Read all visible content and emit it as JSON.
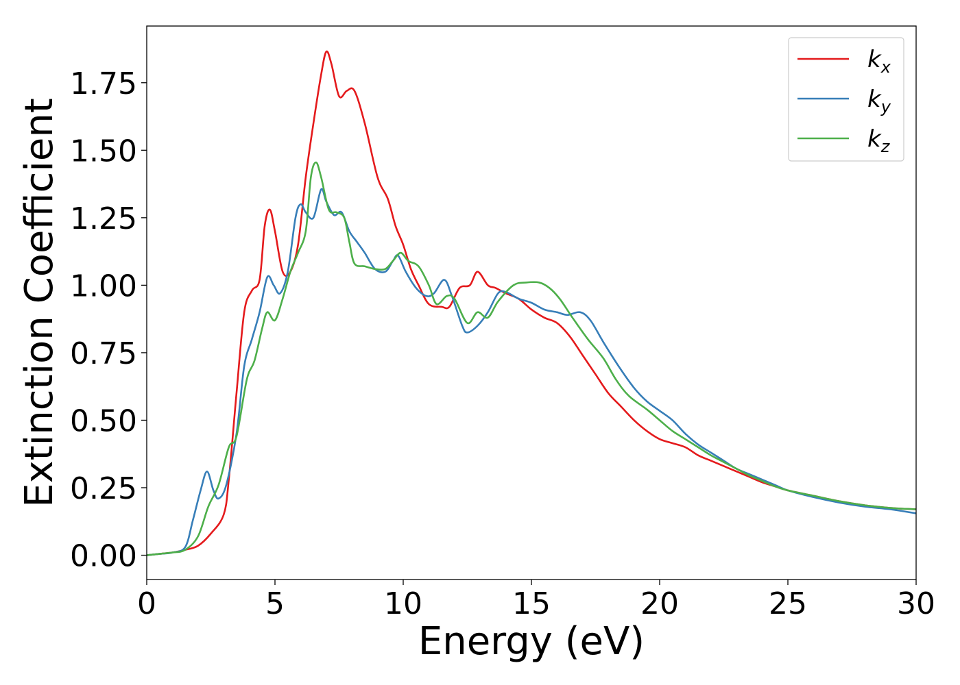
{
  "chart_data": {
    "type": "line",
    "title": "",
    "xlabel": "Energy (eV)",
    "ylabel": "Extinction Coefficient",
    "xlim": [
      0,
      30
    ],
    "ylim": [
      -0.09,
      1.96
    ],
    "xticks": [
      0,
      5,
      10,
      15,
      20,
      25,
      30
    ],
    "xtick_labels": [
      "0",
      "5",
      "10",
      "15",
      "20",
      "25",
      "30"
    ],
    "yticks": [
      0,
      0.25,
      0.5,
      0.75,
      1.0,
      1.25,
      1.5,
      1.75
    ],
    "ytick_labels": [
      "0.00",
      "0.25",
      "0.50",
      "0.75",
      "1.00",
      "1.25",
      "1.50",
      "1.75"
    ],
    "grid": false,
    "legend_position": "top-right",
    "series": [
      {
        "name": "k_x",
        "label_main": "k",
        "label_sub": "x",
        "color": "#e41a1c",
        "points": [
          [
            0,
            0
          ],
          [
            0.5,
            0.005
          ],
          [
            1,
            0.01
          ],
          [
            1.5,
            0.02
          ],
          [
            2,
            0.035
          ],
          [
            2.5,
            0.08
          ],
          [
            3,
            0.15
          ],
          [
            3.2,
            0.28
          ],
          [
            3.5,
            0.6
          ],
          [
            3.8,
            0.9
          ],
          [
            4.1,
            0.98
          ],
          [
            4.4,
            1.02
          ],
          [
            4.6,
            1.22
          ],
          [
            4.8,
            1.28
          ],
          [
            5,
            1.2
          ],
          [
            5.3,
            1.05
          ],
          [
            5.6,
            1.05
          ],
          [
            5.9,
            1.15
          ],
          [
            6.2,
            1.4
          ],
          [
            6.5,
            1.6
          ],
          [
            6.8,
            1.78
          ],
          [
            7,
            1.865
          ],
          [
            7.2,
            1.82
          ],
          [
            7.5,
            1.7
          ],
          [
            7.8,
            1.72
          ],
          [
            8.1,
            1.72
          ],
          [
            8.5,
            1.6
          ],
          [
            9,
            1.4
          ],
          [
            9.4,
            1.32
          ],
          [
            9.7,
            1.22
          ],
          [
            10,
            1.15
          ],
          [
            10.3,
            1.06
          ],
          [
            10.6,
            1.0
          ],
          [
            11,
            0.93
          ],
          [
            11.5,
            0.92
          ],
          [
            11.8,
            0.92
          ],
          [
            12.2,
            0.99
          ],
          [
            12.6,
            1.0
          ],
          [
            12.9,
            1.05
          ],
          [
            13.3,
            1.0
          ],
          [
            13.6,
            0.99
          ],
          [
            14,
            0.97
          ],
          [
            14.5,
            0.95
          ],
          [
            15,
            0.91
          ],
          [
            15.5,
            0.88
          ],
          [
            16,
            0.86
          ],
          [
            16.5,
            0.81
          ],
          [
            17,
            0.74
          ],
          [
            17.5,
            0.67
          ],
          [
            18,
            0.6
          ],
          [
            18.5,
            0.55
          ],
          [
            19,
            0.5
          ],
          [
            19.5,
            0.46
          ],
          [
            20,
            0.43
          ],
          [
            20.5,
            0.415
          ],
          [
            21,
            0.4
          ],
          [
            21.5,
            0.37
          ],
          [
            22,
            0.35
          ],
          [
            22.5,
            0.33
          ],
          [
            23,
            0.31
          ],
          [
            23.5,
            0.29
          ],
          [
            24,
            0.27
          ],
          [
            24.5,
            0.255
          ],
          [
            25,
            0.24
          ],
          [
            26,
            0.22
          ],
          [
            27,
            0.2
          ],
          [
            28,
            0.185
          ],
          [
            29,
            0.175
          ],
          [
            30,
            0.17
          ]
        ]
      },
      {
        "name": "k_y",
        "label_main": "k",
        "label_sub": "y",
        "color": "#377eb8",
        "points": [
          [
            0,
            0
          ],
          [
            0.5,
            0.005
          ],
          [
            1,
            0.01
          ],
          [
            1.5,
            0.03
          ],
          [
            1.8,
            0.13
          ],
          [
            2.1,
            0.24
          ],
          [
            2.35,
            0.31
          ],
          [
            2.6,
            0.24
          ],
          [
            2.8,
            0.21
          ],
          [
            3.1,
            0.26
          ],
          [
            3.5,
            0.45
          ],
          [
            3.8,
            0.7
          ],
          [
            4.1,
            0.8
          ],
          [
            4.4,
            0.9
          ],
          [
            4.7,
            1.03
          ],
          [
            4.95,
            1.0
          ],
          [
            5.2,
            0.97
          ],
          [
            5.5,
            1.05
          ],
          [
            5.8,
            1.25
          ],
          [
            6,
            1.3
          ],
          [
            6.2,
            1.27
          ],
          [
            6.5,
            1.25
          ],
          [
            6.8,
            1.355
          ],
          [
            7,
            1.31
          ],
          [
            7.3,
            1.26
          ],
          [
            7.6,
            1.27
          ],
          [
            7.9,
            1.2
          ],
          [
            8.2,
            1.16
          ],
          [
            8.5,
            1.12
          ],
          [
            8.9,
            1.06
          ],
          [
            9.3,
            1.05
          ],
          [
            9.6,
            1.09
          ],
          [
            9.8,
            1.11
          ],
          [
            10.1,
            1.05
          ],
          [
            10.5,
            0.99
          ],
          [
            10.9,
            0.96
          ],
          [
            11.2,
            0.97
          ],
          [
            11.6,
            1.02
          ],
          [
            11.9,
            0.96
          ],
          [
            12.3,
            0.85
          ],
          [
            12.5,
            0.825
          ],
          [
            12.9,
            0.85
          ],
          [
            13.3,
            0.9
          ],
          [
            13.7,
            0.97
          ],
          [
            14,
            0.975
          ],
          [
            14.5,
            0.95
          ],
          [
            15,
            0.935
          ],
          [
            15.5,
            0.91
          ],
          [
            16,
            0.9
          ],
          [
            16.4,
            0.89
          ],
          [
            16.9,
            0.9
          ],
          [
            17.3,
            0.87
          ],
          [
            17.8,
            0.79
          ],
          [
            18.4,
            0.7
          ],
          [
            19,
            0.62
          ],
          [
            19.5,
            0.57
          ],
          [
            20,
            0.535
          ],
          [
            20.5,
            0.5
          ],
          [
            21,
            0.45
          ],
          [
            21.5,
            0.41
          ],
          [
            22,
            0.38
          ],
          [
            22.5,
            0.35
          ],
          [
            23,
            0.32
          ],
          [
            23.5,
            0.3
          ],
          [
            24,
            0.28
          ],
          [
            24.5,
            0.26
          ],
          [
            25,
            0.24
          ],
          [
            26,
            0.215
          ],
          [
            27,
            0.195
          ],
          [
            28,
            0.18
          ],
          [
            29,
            0.17
          ],
          [
            30,
            0.155
          ]
        ]
      },
      {
        "name": "k_z",
        "label_main": "k",
        "label_sub": "z",
        "color": "#4daf4a",
        "points": [
          [
            0,
            0
          ],
          [
            0.5,
            0.005
          ],
          [
            1,
            0.01
          ],
          [
            1.5,
            0.02
          ],
          [
            2,
            0.07
          ],
          [
            2.4,
            0.18
          ],
          [
            2.8,
            0.26
          ],
          [
            3.2,
            0.4
          ],
          [
            3.5,
            0.44
          ],
          [
            3.9,
            0.65
          ],
          [
            4.2,
            0.72
          ],
          [
            4.5,
            0.84
          ],
          [
            4.7,
            0.9
          ],
          [
            5,
            0.87
          ],
          [
            5.3,
            0.95
          ],
          [
            5.6,
            1.05
          ],
          [
            5.9,
            1.12
          ],
          [
            6.2,
            1.2
          ],
          [
            6.4,
            1.4
          ],
          [
            6.6,
            1.455
          ],
          [
            6.8,
            1.4
          ],
          [
            7.1,
            1.28
          ],
          [
            7.4,
            1.27
          ],
          [
            7.7,
            1.25
          ],
          [
            7.9,
            1.16
          ],
          [
            8.1,
            1.08
          ],
          [
            8.5,
            1.07
          ],
          [
            8.9,
            1.06
          ],
          [
            9.3,
            1.06
          ],
          [
            9.6,
            1.09
          ],
          [
            9.9,
            1.12
          ],
          [
            10.2,
            1.09
          ],
          [
            10.6,
            1.07
          ],
          [
            11,
            1.0
          ],
          [
            11.3,
            0.93
          ],
          [
            11.7,
            0.96
          ],
          [
            12,
            0.95
          ],
          [
            12.5,
            0.86
          ],
          [
            12.9,
            0.9
          ],
          [
            13.3,
            0.88
          ],
          [
            13.7,
            0.94
          ],
          [
            14.3,
            1.0
          ],
          [
            14.8,
            1.01
          ],
          [
            15.3,
            1.01
          ],
          [
            15.7,
            0.99
          ],
          [
            16.1,
            0.95
          ],
          [
            16.6,
            0.88
          ],
          [
            17.2,
            0.8
          ],
          [
            17.8,
            0.73
          ],
          [
            18.3,
            0.65
          ],
          [
            18.8,
            0.59
          ],
          [
            19.5,
            0.54
          ],
          [
            20,
            0.5
          ],
          [
            20.5,
            0.46
          ],
          [
            21,
            0.43
          ],
          [
            21.5,
            0.4
          ],
          [
            22,
            0.37
          ],
          [
            22.5,
            0.345
          ],
          [
            23,
            0.32
          ],
          [
            23.5,
            0.295
          ],
          [
            24,
            0.275
          ],
          [
            24.5,
            0.255
          ],
          [
            25,
            0.24
          ],
          [
            26,
            0.22
          ],
          [
            27,
            0.2
          ],
          [
            28,
            0.185
          ],
          [
            29,
            0.175
          ],
          [
            30,
            0.17
          ]
        ]
      }
    ]
  }
}
